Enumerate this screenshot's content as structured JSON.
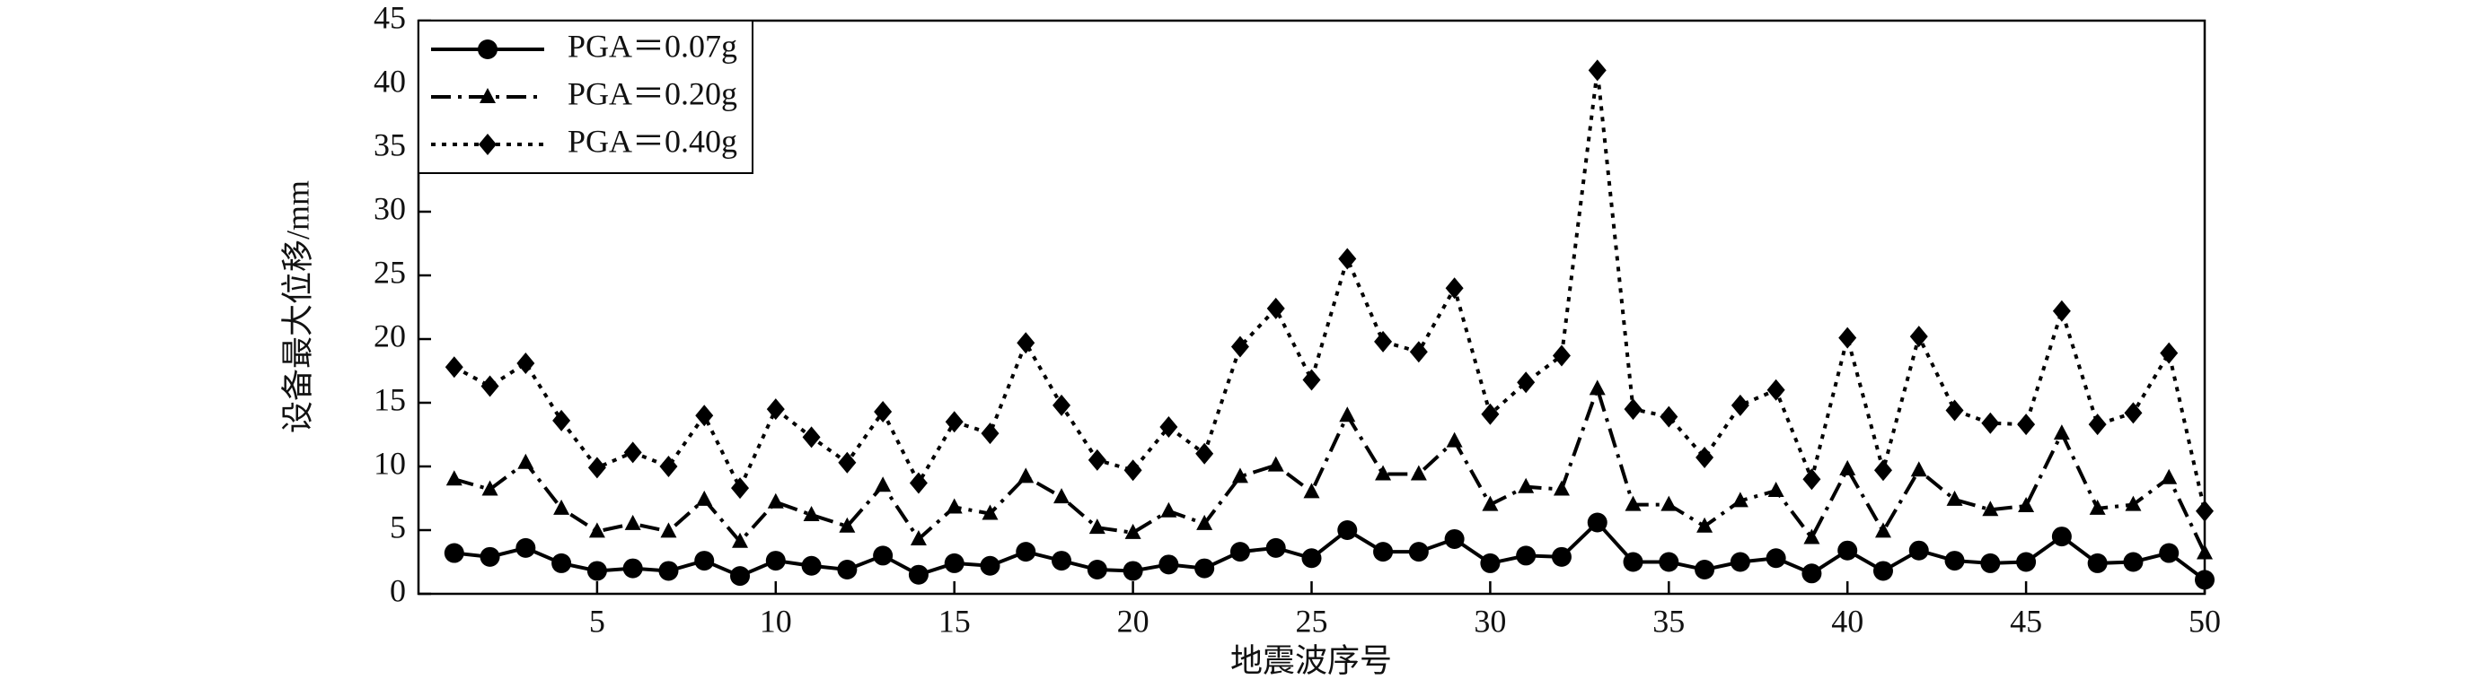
{
  "chart_data": {
    "type": "line",
    "xlabel": "地震波序号",
    "ylabel": "设备最大位移/mm",
    "x": [
      1,
      2,
      3,
      4,
      5,
      6,
      7,
      8,
      9,
      10,
      11,
      12,
      13,
      14,
      15,
      16,
      17,
      18,
      19,
      20,
      21,
      22,
      23,
      24,
      25,
      26,
      27,
      28,
      29,
      30,
      31,
      32,
      33,
      34,
      35,
      36,
      37,
      38,
      39,
      40,
      41,
      42,
      43,
      44,
      45,
      46,
      47,
      48,
      49,
      50
    ],
    "xlim": [
      0,
      50
    ],
    "xticks": [
      5,
      10,
      15,
      20,
      25,
      30,
      35,
      40,
      45,
      50
    ],
    "ylim": [
      0,
      45
    ],
    "yticks": [
      0,
      5,
      10,
      15,
      20,
      25,
      30,
      35,
      40,
      45
    ],
    "legend": "upper left",
    "series": [
      {
        "name": "PGA＝0.07g",
        "color": "#000000",
        "marker": "circle",
        "linestyle": "solid",
        "values": [
          3.2,
          2.9,
          3.6,
          2.4,
          1.8,
          2.0,
          1.8,
          2.6,
          1.4,
          2.6,
          2.2,
          1.9,
          3.0,
          1.5,
          2.4,
          2.2,
          3.3,
          2.6,
          1.9,
          1.8,
          2.3,
          2.0,
          3.3,
          3.6,
          2.8,
          5.0,
          3.3,
          3.3,
          4.3,
          2.4,
          3.0,
          2.9,
          5.6,
          2.5,
          2.5,
          1.9,
          2.5,
          2.8,
          1.6,
          3.4,
          1.8,
          3.4,
          2.6,
          2.4,
          2.5,
          4.5,
          2.4,
          2.5,
          3.2,
          1.1
        ]
      },
      {
        "name": "PGA＝0.20g",
        "color": "#000000",
        "marker": "triangle",
        "linestyle": "dashdot",
        "values": [
          9.0,
          8.2,
          10.3,
          6.7,
          4.9,
          5.5,
          4.9,
          7.4,
          4.1,
          7.2,
          6.2,
          5.3,
          8.5,
          4.3,
          6.8,
          6.3,
          9.2,
          7.6,
          5.2,
          4.8,
          6.5,
          5.5,
          9.2,
          10.1,
          8.0,
          14.0,
          9.4,
          9.4,
          12.0,
          7.0,
          8.4,
          8.2,
          16.1,
          7.0,
          7.0,
          5.3,
          7.3,
          8.1,
          4.4,
          9.8,
          4.9,
          9.7,
          7.4,
          6.6,
          6.9,
          12.6,
          6.7,
          7.0,
          9.1,
          3.2
        ]
      },
      {
        "name": "PGA＝0.40g",
        "color": "#000000",
        "marker": "diamond",
        "linestyle": "dotted",
        "values": [
          17.8,
          16.3,
          18.1,
          13.6,
          9.9,
          11.1,
          10.0,
          14.0,
          8.3,
          14.5,
          12.3,
          10.3,
          14.3,
          8.7,
          13.5,
          12.6,
          19.7,
          14.8,
          10.5,
          9.7,
          13.1,
          11.0,
          19.4,
          22.4,
          16.8,
          26.3,
          19.8,
          19.0,
          24.0,
          14.1,
          16.6,
          18.7,
          41.1,
          14.5,
          13.9,
          10.7,
          14.8,
          16.0,
          9.0,
          20.1,
          9.7,
          20.2,
          14.4,
          13.4,
          13.3,
          22.2,
          13.3,
          14.2,
          18.9,
          6.5
        ]
      }
    ]
  }
}
